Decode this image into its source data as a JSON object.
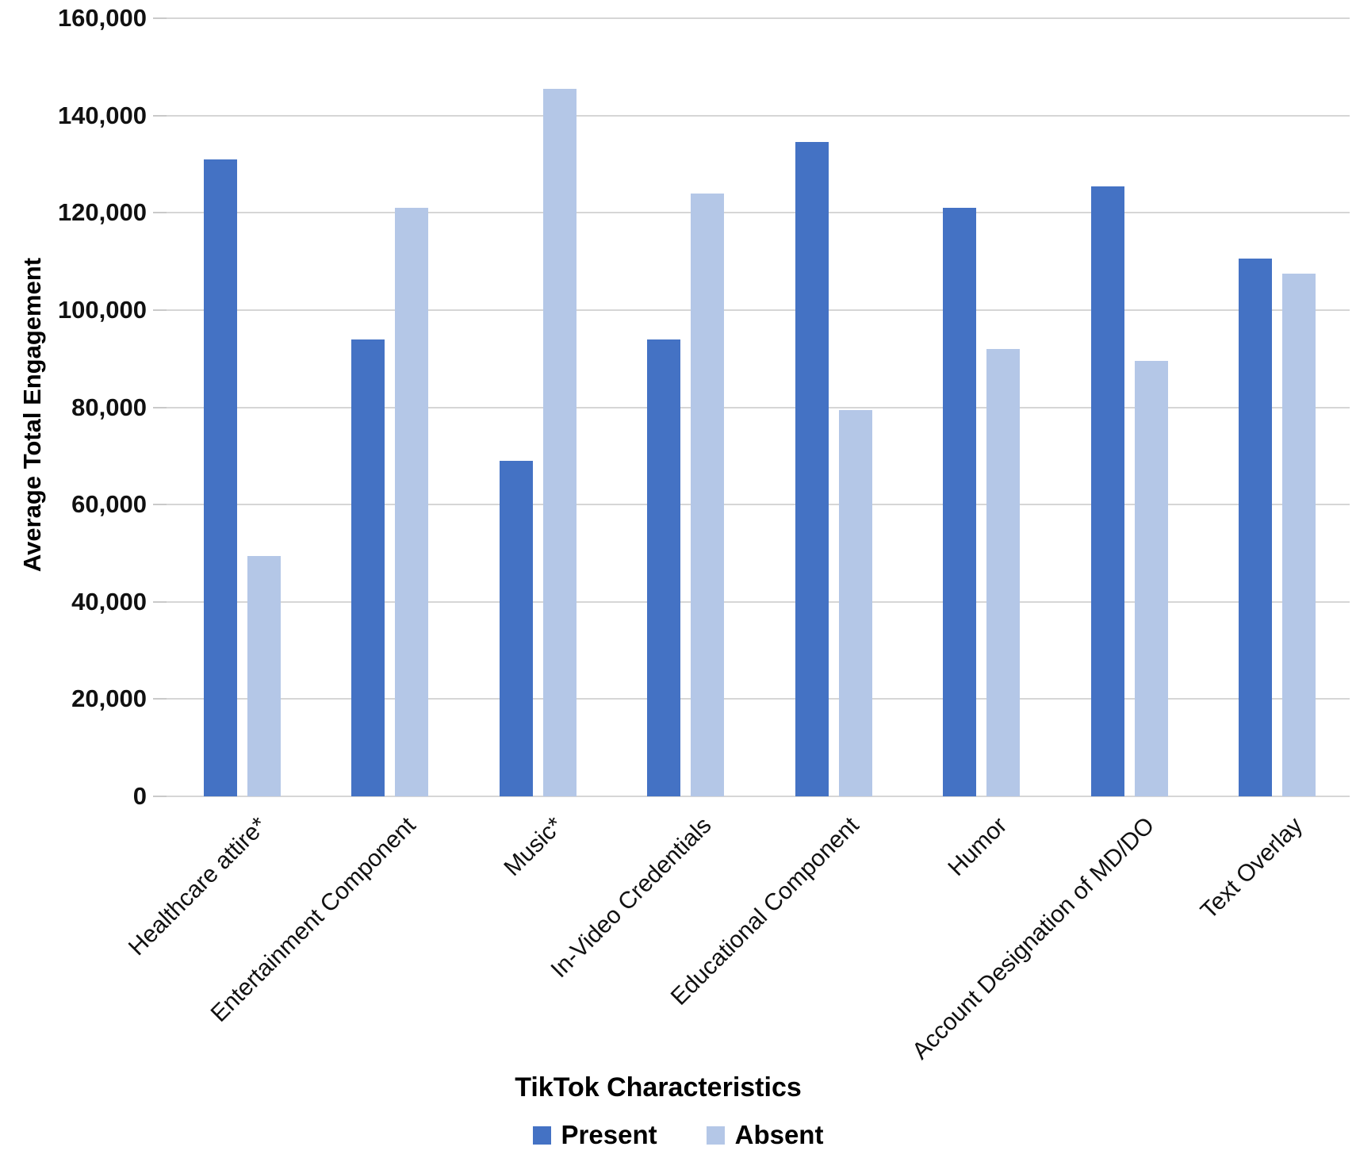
{
  "chart_data": {
    "type": "bar",
    "title": "",
    "xlabel": "TikTok Characteristics",
    "ylabel": "Average Total Engagement",
    "categories": [
      "Healthcare attire*",
      "Entertainment Component",
      "Music*",
      "In-Video Credentials",
      "Educational Component",
      "Humor",
      "Account Designation of MD/DO",
      "Text Overlay"
    ],
    "series": [
      {
        "name": "Present",
        "color": "#4472C4",
        "values": [
          131000,
          94000,
          69000,
          94000,
          134500,
          121000,
          125500,
          110500
        ]
      },
      {
        "name": "Absent",
        "color": "#B4C7E7",
        "values": [
          49500,
          121000,
          145500,
          124000,
          79500,
          92000,
          89500,
          107500
        ]
      }
    ],
    "ylim": [
      0,
      160000
    ],
    "y_tick_step": 20000,
    "y_tick_values": [
      0,
      20000,
      40000,
      60000,
      80000,
      100000,
      120000,
      140000,
      160000
    ],
    "y_tick_labels": [
      "0",
      "20,000",
      "40,000",
      "60,000",
      "80,000",
      "100,000",
      "120,000",
      "140,000",
      "160,000"
    ],
    "grid": true,
    "legend_position": "bottom"
  }
}
